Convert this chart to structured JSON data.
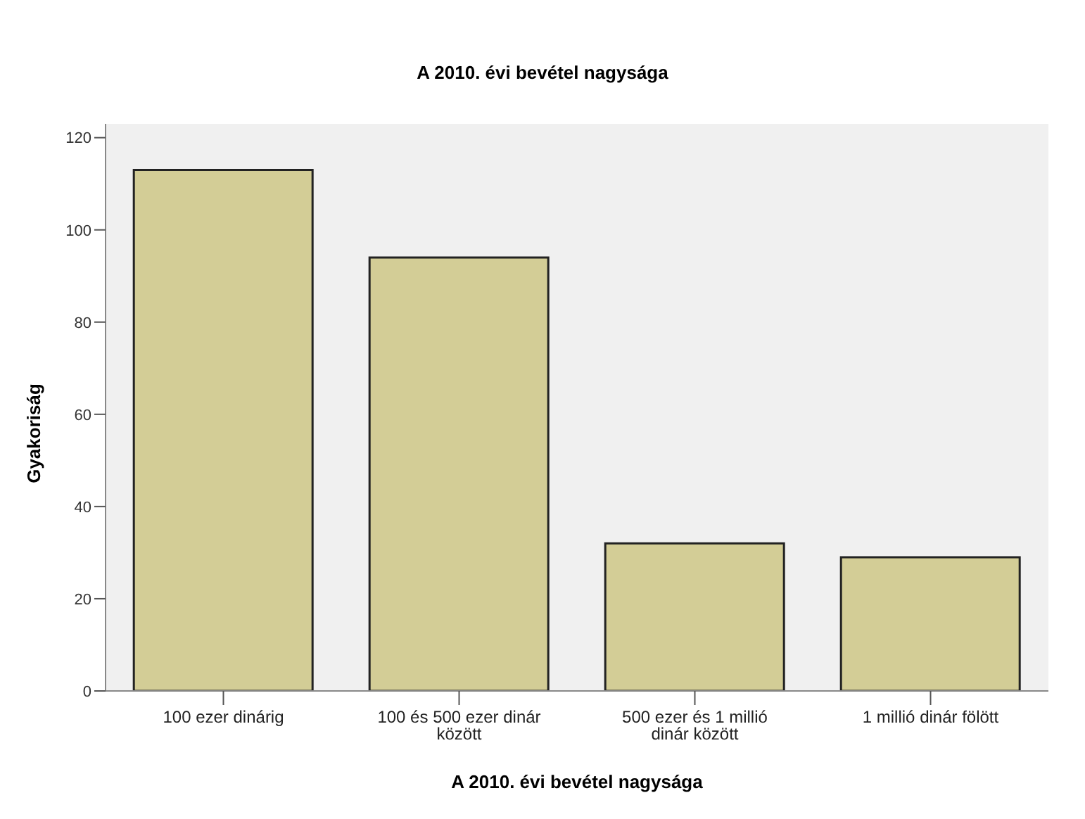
{
  "chart_data": {
    "type": "bar",
    "title": "A 2010. évi bevétel nagysága",
    "xlabel": "A 2010. évi bevétel nagysága",
    "ylabel": "Gyakoriság",
    "categories": [
      "100 ezer dinárig",
      "100 és 500 ezer dinár között",
      "500 ezer és 1 millió dinár között",
      "1 millió dinár fölött"
    ],
    "values": [
      113,
      94,
      32,
      29
    ],
    "color": "#d3cd96",
    "ylim": [
      0,
      123
    ],
    "yticks": [
      0,
      20,
      40,
      60,
      80,
      100,
      120
    ],
    "grid": false
  }
}
